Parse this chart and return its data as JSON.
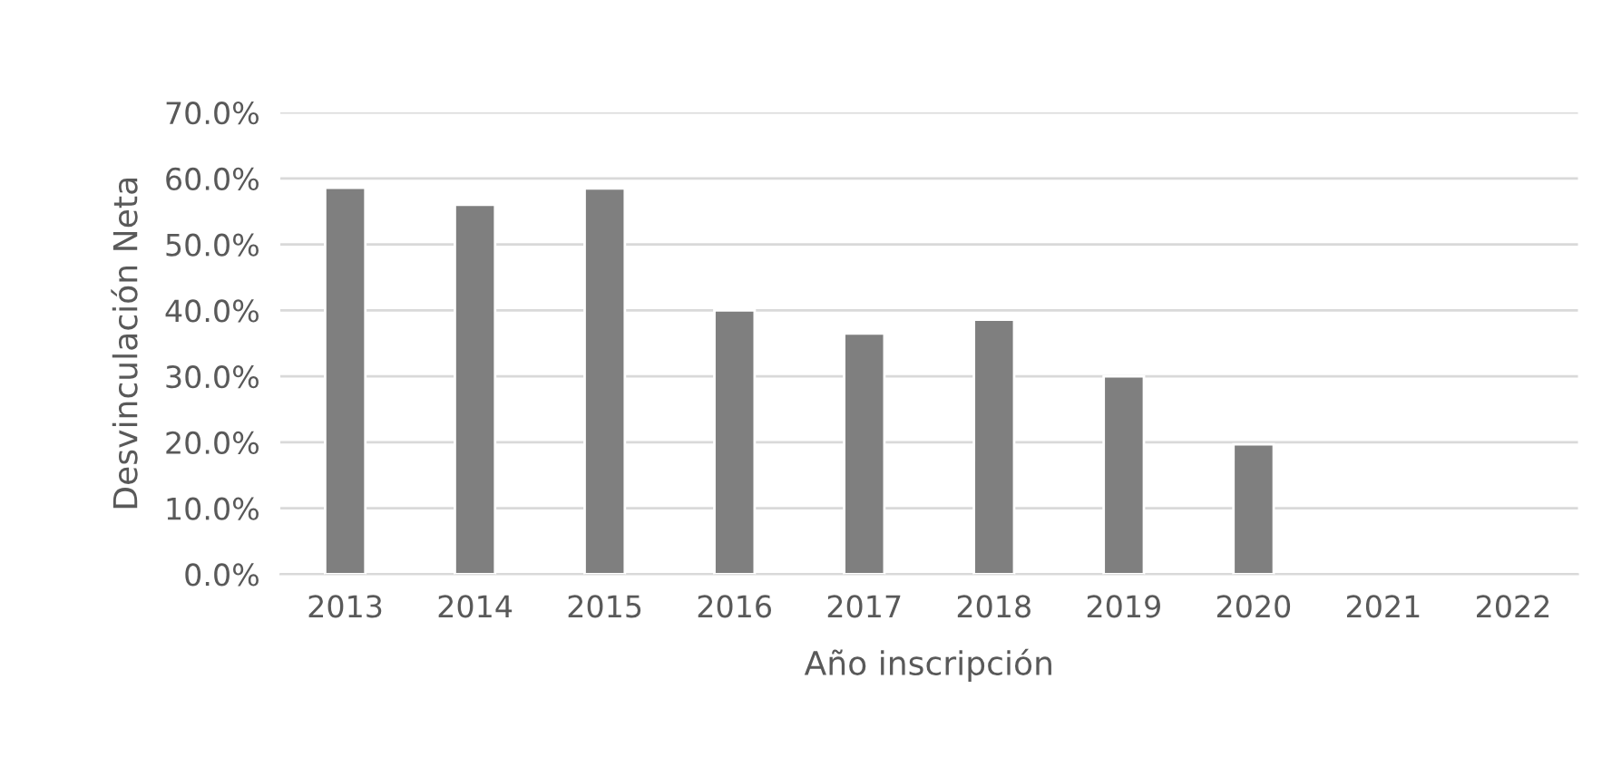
{
  "chart_data": {
    "type": "bar",
    "xlabel": "Año inscripción",
    "ylabel": "Desvinculación Neta",
    "categories": [
      "2013",
      "2014",
      "2015",
      "2016",
      "2017",
      "2018",
      "2019",
      "2020",
      "2021",
      "2022"
    ],
    "values": [
      58.6,
      56.0,
      58.5,
      40.0,
      36.5,
      38.6,
      30.0,
      19.7,
      null,
      null
    ],
    "color": "#7f7f7f",
    "ylim": [
      0,
      70
    ],
    "yticks": [
      {
        "value": 0,
        "label": "0.0%"
      },
      {
        "value": 10,
        "label": "10.0%"
      },
      {
        "value": 20,
        "label": "20.0%"
      },
      {
        "value": 30,
        "label": "30.0%"
      },
      {
        "value": 40,
        "label": "40.0%"
      },
      {
        "value": 50,
        "label": "50.0%"
      },
      {
        "value": 60,
        "label": "60.0%"
      },
      {
        "value": 70,
        "label": "70.0%"
      }
    ],
    "grid": "y",
    "legend": false
  }
}
